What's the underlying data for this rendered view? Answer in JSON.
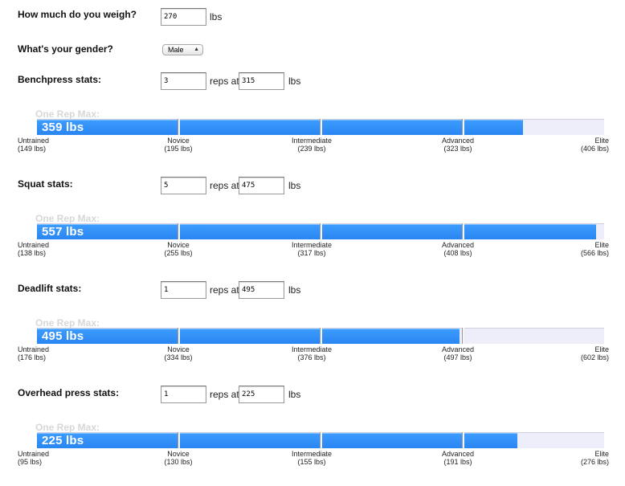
{
  "weight": {
    "question": "How much do you weigh?",
    "value": "270",
    "unit": "lbs"
  },
  "gender": {
    "question": "What's your gender?",
    "selected": "Male"
  },
  "one_rep_max_label": "One Rep Max:",
  "reps_at_label": "reps at",
  "unit_label": "lbs",
  "lifts": [
    {
      "question": "Benchpress stats:",
      "reps": "3",
      "weight": "315",
      "one_rep_max": "359 lbs",
      "progress": 0.857,
      "levels": [
        {
          "name": "Untrained",
          "value": "(149 lbs)"
        },
        {
          "name": "Novice",
          "value": "(195 lbs)"
        },
        {
          "name": "Intermediate",
          "value": "(239 lbs)"
        },
        {
          "name": "Advanced",
          "value": "(323 lbs)"
        },
        {
          "name": "Elite",
          "value": "(406 lbs)"
        }
      ]
    },
    {
      "question": "Squat stats:",
      "reps": "5",
      "weight": "475",
      "one_rep_max": "557 lbs",
      "progress": 0.986,
      "levels": [
        {
          "name": "Untrained",
          "value": "(138 lbs)"
        },
        {
          "name": "Novice",
          "value": "(255 lbs)"
        },
        {
          "name": "Intermediate",
          "value": "(317 lbs)"
        },
        {
          "name": "Advanced",
          "value": "(408 lbs)"
        },
        {
          "name": "Elite",
          "value": "(566 lbs)"
        }
      ]
    },
    {
      "question": "Deadlift stats:",
      "reps": "1",
      "weight": "495",
      "one_rep_max": "495 lbs",
      "progress": 0.745,
      "levels": [
        {
          "name": "Untrained",
          "value": "(176 lbs)"
        },
        {
          "name": "Novice",
          "value": "(334 lbs)"
        },
        {
          "name": "Intermediate",
          "value": "(376 lbs)"
        },
        {
          "name": "Advanced",
          "value": "(497 lbs)"
        },
        {
          "name": "Elite",
          "value": "(602 lbs)"
        }
      ]
    },
    {
      "question": "Overhead press stats:",
      "reps": "1",
      "weight": "225",
      "one_rep_max": "225 lbs",
      "progress": 0.847,
      "levels": [
        {
          "name": "Untrained",
          "value": "(95 lbs)"
        },
        {
          "name": "Novice",
          "value": "(130 lbs)"
        },
        {
          "name": "Intermediate",
          "value": "(155 lbs)"
        },
        {
          "name": "Advanced",
          "value": "(191 lbs)"
        },
        {
          "name": "Elite",
          "value": "(276 lbs)"
        }
      ]
    }
  ],
  "colors": {
    "fill": "#2a86f2",
    "track": "#eeeefa",
    "one_rep_max_label": "#d7d7d7"
  }
}
